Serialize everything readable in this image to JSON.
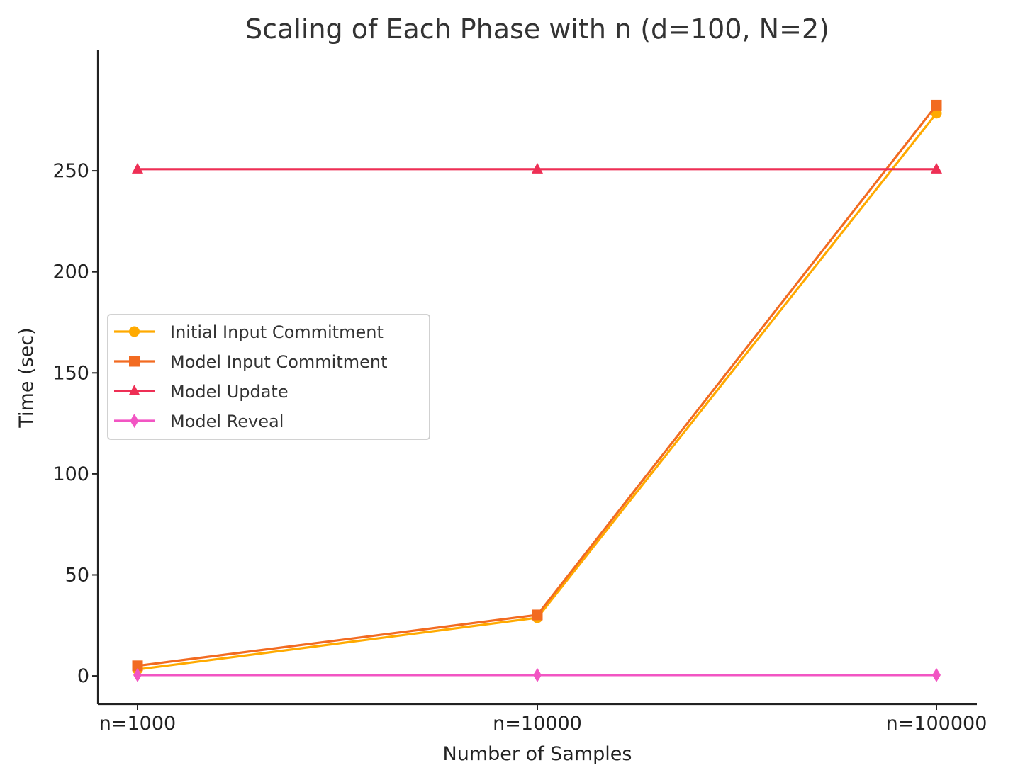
{
  "chart_data": {
    "type": "line",
    "title": "Scaling of Each Phase with n (d=100, N=2)",
    "xlabel": "Number of Samples",
    "ylabel": "Time (sec)",
    "categories": [
      "n=1000",
      "n=10000",
      "n=100000"
    ],
    "ylim": [
      -14,
      310
    ],
    "yticks": [
      0,
      50,
      100,
      150,
      200,
      250
    ],
    "grid": false,
    "legend_position": "center-left",
    "series": [
      {
        "name": "Initial Input Commitment",
        "values": [
          3.2,
          28.8,
          278.5
        ],
        "color": "#FFAA00",
        "marker": "circle"
      },
      {
        "name": "Model Input Commitment",
        "values": [
          5.0,
          30.2,
          282.5
        ],
        "color": "#F26B21",
        "marker": "square"
      },
      {
        "name": "Model Update",
        "values": [
          250.8,
          250.8,
          250.8
        ],
        "color": "#EE2F55",
        "marker": "triangle"
      },
      {
        "name": "Model Reveal",
        "values": [
          0.4,
          0.4,
          0.4
        ],
        "color": "#F255C3",
        "marker": "diamond"
      }
    ]
  }
}
